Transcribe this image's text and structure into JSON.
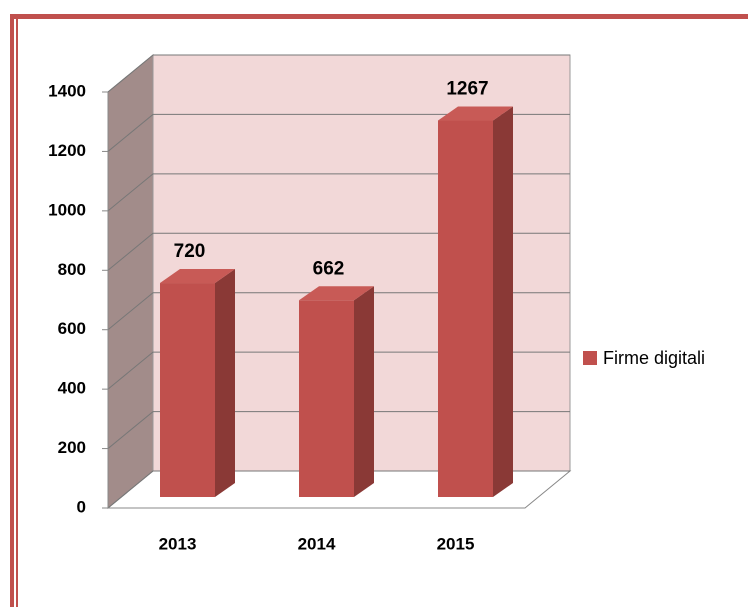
{
  "chart_data": {
    "type": "bar3d",
    "categories": [
      "2013",
      "2014",
      "2015"
    ],
    "series": [
      {
        "name": "Firme digitali",
        "color": "#c0504d",
        "values": [
          720,
          662,
          1267
        ]
      }
    ],
    "ylim": [
      0,
      1400
    ],
    "yticks": [
      0,
      200,
      400,
      600,
      800,
      1000,
      1200,
      1400
    ],
    "grid": true,
    "legend": "right"
  }
}
